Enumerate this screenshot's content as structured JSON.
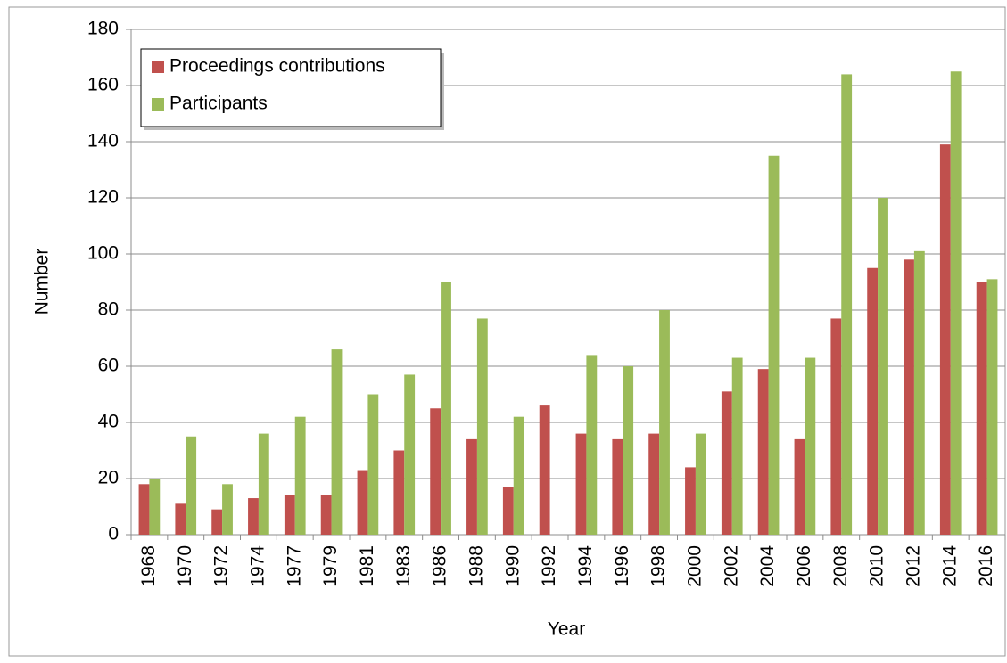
{
  "chart_data": {
    "type": "bar",
    "x_label": "Year",
    "y_label": "Number",
    "categories": [
      "1968",
      "1970",
      "1972",
      "1974",
      "1977",
      "1979",
      "1981",
      "1983",
      "1986",
      "1988",
      "1990",
      "1992",
      "1994",
      "1996",
      "1998",
      "2000",
      "2002",
      "2004",
      "2006",
      "2008",
      "2010",
      "2012",
      "2014",
      "2016"
    ],
    "series": [
      {
        "name": "Proceedings contributions",
        "color": "#c0504d",
        "values": [
          18,
          11,
          9,
          13,
          14,
          14,
          23,
          30,
          45,
          34,
          17,
          46,
          36,
          34,
          36,
          24,
          51,
          59,
          34,
          77,
          95,
          98,
          139,
          90
        ]
      },
      {
        "name": "Participants",
        "color": "#9bbb59",
        "values": [
          20,
          35,
          18,
          36,
          42,
          66,
          50,
          57,
          90,
          77,
          42,
          null,
          64,
          60,
          80,
          36,
          63,
          135,
          63,
          164,
          120,
          101,
          165,
          91
        ]
      }
    ],
    "ylim": [
      0,
      180
    ],
    "yticks": [
      0,
      20,
      40,
      60,
      80,
      100,
      120,
      140,
      160,
      180
    ],
    "grid": true,
    "legend_position": "upper left"
  }
}
